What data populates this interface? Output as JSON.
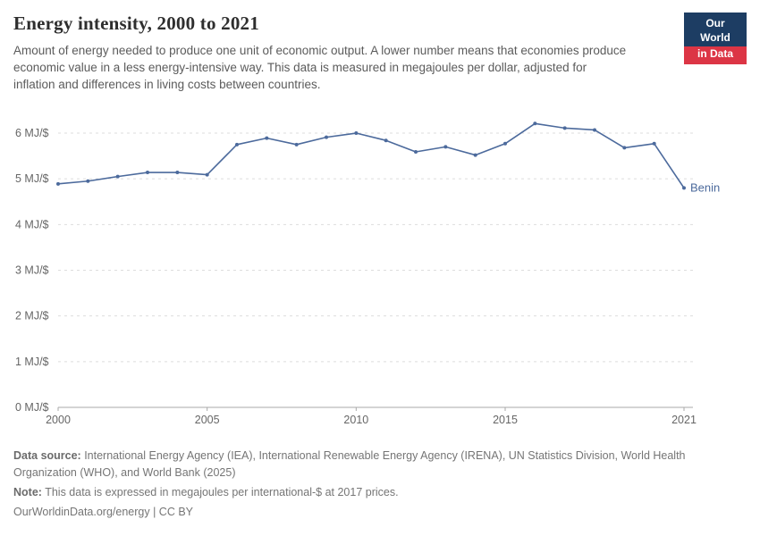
{
  "logo": {
    "line1": "Our World",
    "line2": "in Data",
    "bg_color": "#1d3d63",
    "accent_color": "#dc3545"
  },
  "header": {
    "title": "Energy intensity, 2000 to 2021",
    "subtitle": "Amount of energy needed to produce one unit of economic output. A lower number means that economies produce economic value in a less energy-intensive way. This data is measured in megajoules per dollar, adjusted for inflation and differences in living costs between countries."
  },
  "chart_data": {
    "type": "line",
    "title": "Energy intensity, 2000 to 2021",
    "xlabel": "",
    "ylabel": "MJ/$",
    "xlim": [
      2000,
      2021
    ],
    "ylim": [
      0,
      6.45
    ],
    "grid": "dashed horizontal gridlines, solid zero axis",
    "legend_position": "end-of-line label",
    "x_ticks": [
      {
        "value": 2000,
        "label": "2000"
      },
      {
        "value": 2005,
        "label": "2005"
      },
      {
        "value": 2010,
        "label": "2010"
      },
      {
        "value": 2015,
        "label": "2015"
      },
      {
        "value": 2021,
        "label": "2021"
      }
    ],
    "y_ticks": [
      {
        "value": 0,
        "label": "0 MJ/$"
      },
      {
        "value": 1,
        "label": "1 MJ/$"
      },
      {
        "value": 2,
        "label": "2 MJ/$"
      },
      {
        "value": 3,
        "label": "3 MJ/$"
      },
      {
        "value": 4,
        "label": "4 MJ/$"
      },
      {
        "value": 5,
        "label": "5 MJ/$"
      },
      {
        "value": 6,
        "label": "6 MJ/$"
      }
    ],
    "series": [
      {
        "name": "Benin",
        "color": "#4c6a9c",
        "x": [
          2000,
          2001,
          2002,
          2003,
          2004,
          2005,
          2006,
          2007,
          2008,
          2009,
          2010,
          2011,
          2012,
          2013,
          2014,
          2015,
          2016,
          2017,
          2018,
          2019,
          2020,
          2021
        ],
        "values": [
          4.89,
          4.95,
          5.05,
          5.14,
          5.14,
          5.09,
          5.75,
          5.89,
          5.75,
          5.91,
          6.0,
          5.84,
          5.59,
          5.7,
          5.52,
          5.77,
          6.21,
          6.11,
          6.07,
          5.68,
          5.77,
          4.8
        ]
      }
    ]
  },
  "footer": {
    "source_label": "Data source:",
    "source_text": " International Energy Agency (IEA), International Renewable Energy Agency (IRENA), UN Statistics Division, World Health Organization (WHO), and World Bank (2025)",
    "note_label": "Note:",
    "note_text": " This data is expressed in megajoules per international-$ at 2017 prices.",
    "link": "OurWorldinData.org/energy | CC BY"
  }
}
